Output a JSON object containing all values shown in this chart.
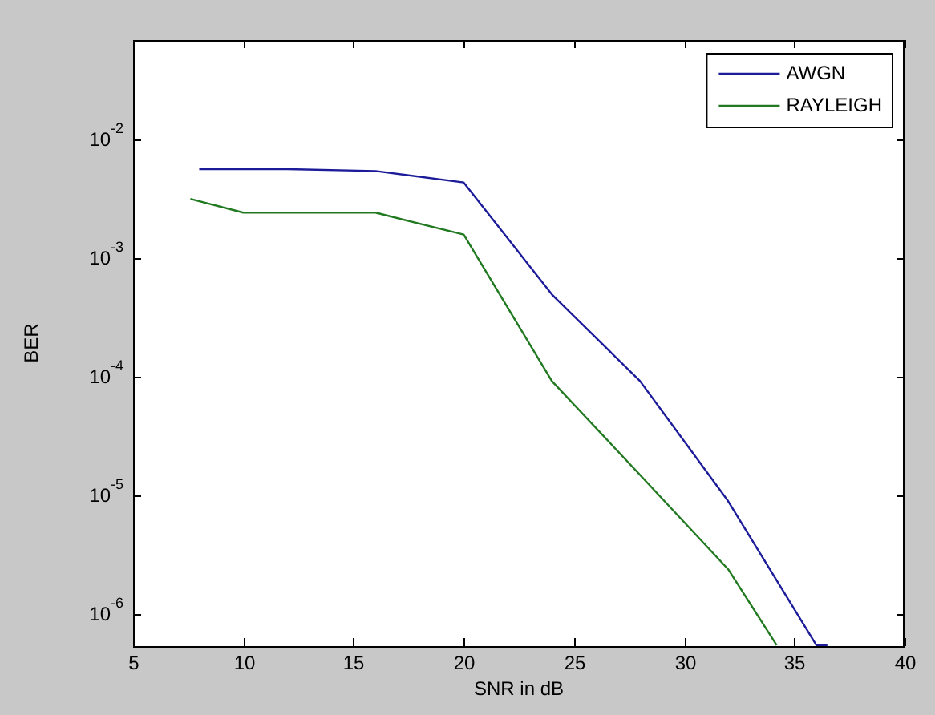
{
  "chart_data": {
    "type": "line",
    "xlabel": "SNR in dB",
    "ylabel": "BER",
    "log": "y",
    "xlim": [
      5,
      40
    ],
    "xticks": [
      5,
      10,
      15,
      20,
      25,
      30,
      35,
      40
    ],
    "ylim": [
      5.4e-07,
      0.07
    ],
    "yticks": [
      {
        "value": 1e-06,
        "label": "10$^{-6}$"
      },
      {
        "value": 1e-05,
        "label": "10$^{-5}$"
      },
      {
        "value": 0.0001,
        "label": "10$^{-4}$"
      },
      {
        "value": 0.001,
        "label": "10$^{-3}$"
      },
      {
        "value": 0.01,
        "label": "10$^{-2}$"
      }
    ],
    "legend": "top right",
    "marker": "none",
    "line_style": "solid",
    "series": [
      {
        "name": "AWGN",
        "color": "#1c1c9a",
        "x": [
          8,
          12,
          16,
          20,
          24,
          28,
          32,
          36,
          36.5
        ],
        "values": [
          0.0057,
          0.0057,
          0.0055,
          0.0044,
          0.0005,
          9.3e-05,
          9e-06,
          5.5e-07,
          5.5e-07
        ]
      },
      {
        "name": "RAYLEIGH",
        "color": "#217a21",
        "x": [
          7.6,
          10,
          16,
          20,
          24,
          28,
          32,
          34.2
        ],
        "values": [
          0.0032,
          0.00245,
          0.00245,
          0.0016,
          9.3e-05,
          1.5e-05,
          2.4e-06,
          5.5e-07
        ]
      }
    ]
  }
}
